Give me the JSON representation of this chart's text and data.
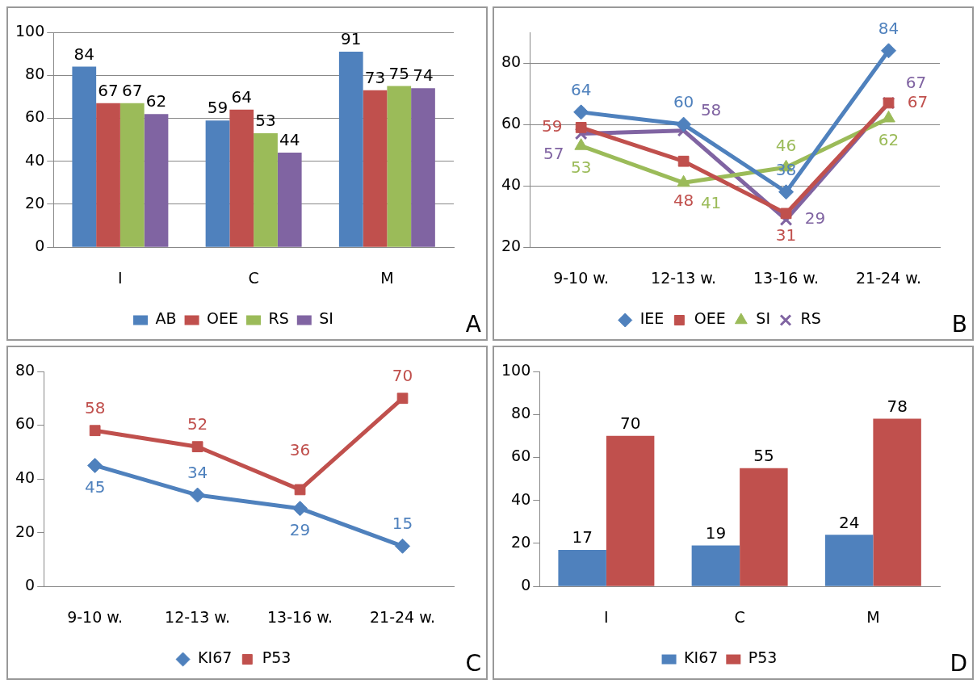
{
  "chart_data": [
    {
      "type": "bar",
      "categories": [
        "I",
        "C",
        "M"
      ],
      "series": [
        {
          "name": "AB",
          "color": "#4f81bd",
          "values": [
            84,
            59,
            91
          ]
        },
        {
          "name": "OEE",
          "color": "#c0504d",
          "values": [
            67,
            64,
            73
          ]
        },
        {
          "name": "RS",
          "color": "#9bbb59",
          "values": [
            67,
            53,
            75
          ]
        },
        {
          "name": "SI",
          "color": "#8064a2",
          "values": [
            62,
            44,
            74
          ]
        }
      ],
      "ylim": [
        0,
        100
      ],
      "yticks": [
        0,
        20,
        40,
        60,
        80,
        100
      ],
      "grid": "y",
      "legend": "bottom",
      "data_labels": true,
      "annotations": [
        "A"
      ]
    },
    {
      "type": "line",
      "categories": [
        "9-10 w.",
        "12-13 w.",
        "13-16 w.",
        "21-24 w."
      ],
      "series": [
        {
          "name": "IEE",
          "color": "#4f81bd",
          "marker": "diamond",
          "values": [
            64,
            60,
            38,
            84
          ]
        },
        {
          "name": "OEE",
          "color": "#c0504d",
          "marker": "square",
          "values": [
            59,
            48,
            31,
            67
          ]
        },
        {
          "name": "SI",
          "color": "#9bbb59",
          "marker": "triangle",
          "values": [
            53,
            41,
            46,
            62
          ]
        },
        {
          "name": "RS",
          "color": "#8064a2",
          "marker": "cross",
          "values": [
            57,
            58,
            29,
            67
          ]
        }
      ],
      "ylim": [
        20,
        90
      ],
      "yticks": [
        20,
        40,
        60,
        80
      ],
      "grid": "y",
      "legend": "bottom",
      "data_labels": true,
      "annotations": [
        "B"
      ]
    },
    {
      "type": "line",
      "categories": [
        "9-10 w.",
        "12-13 w.",
        "13-16 w.",
        "21-24 w."
      ],
      "series": [
        {
          "name": "KI67",
          "color": "#4f81bd",
          "marker": "diamond",
          "values": [
            45,
            34,
            29,
            15
          ]
        },
        {
          "name": "P53",
          "color": "#c0504d",
          "marker": "square",
          "values": [
            58,
            52,
            36,
            70
          ]
        }
      ],
      "ylim": [
        0,
        80
      ],
      "yticks": [
        0,
        20,
        40,
        60,
        80
      ],
      "grid": false,
      "legend": "bottom",
      "data_labels": true,
      "annotations": [
        "C"
      ]
    },
    {
      "type": "bar",
      "categories": [
        "I",
        "C",
        "M"
      ],
      "series": [
        {
          "name": "KI67",
          "color": "#4f81bd",
          "values": [
            17,
            19,
            24
          ]
        },
        {
          "name": "P53",
          "color": "#c0504d",
          "values": [
            70,
            55,
            78
          ]
        }
      ],
      "ylim": [
        0,
        100
      ],
      "yticks": [
        0,
        20,
        40,
        60,
        80,
        100
      ],
      "grid": false,
      "legend": "bottom",
      "data_labels": true,
      "annotations": [
        "D"
      ]
    }
  ]
}
